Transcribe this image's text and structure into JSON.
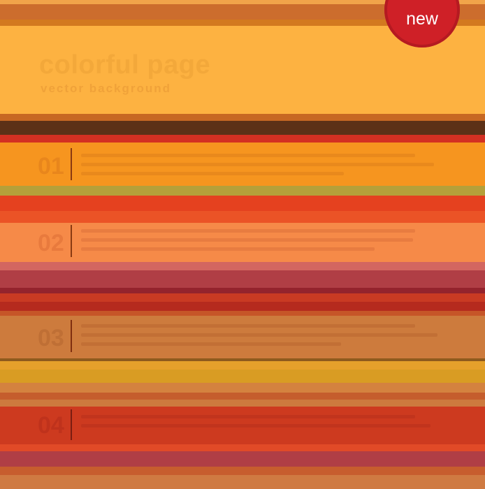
{
  "header": {
    "title": "colorful page",
    "subtitle": "vector background"
  },
  "badge": {
    "label": "new",
    "color": "#cf2027"
  },
  "sections": [
    {
      "number": "01",
      "background": "#f6951f"
    },
    {
      "number": "02",
      "background": "#f68a48"
    },
    {
      "number": "03",
      "background": "#cd7b3d"
    },
    {
      "number": "04",
      "background": "#cd3a1f"
    }
  ],
  "colors": {
    "header_band": "#fdb241",
    "dark_band": "#5c3117",
    "plum_band": "#b03e45",
    "red_band": "#c0291e",
    "mustard_band": "#d99c23",
    "olive_band": "#b5a03a"
  }
}
